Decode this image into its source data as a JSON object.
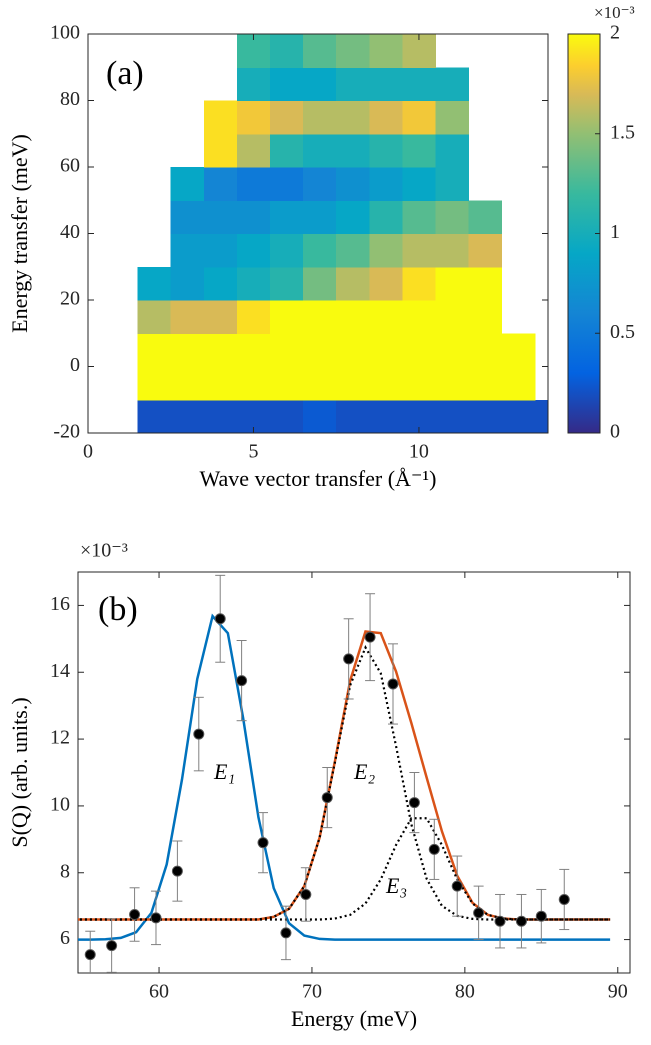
{
  "chart_data": [
    {
      "type": "heatmap",
      "panel_label": "(a)",
      "xlabel": "Wave vector transfer (Å⁻¹)",
      "ylabel": "Energy transfer (meV)",
      "x_edges": [
        1.5,
        2.5,
        3.5,
        4.5,
        5.5,
        6.5,
        7.5,
        8.5,
        9.5,
        10.5,
        11.5,
        12.5,
        13.5,
        13.9
      ],
      "y_edges": [
        -20,
        -10,
        0,
        10,
        20,
        30,
        40,
        50,
        60,
        70,
        80,
        90,
        100
      ],
      "values": [
        [
          0.2,
          0.2,
          0.2,
          0.2,
          0.2,
          0.25,
          0.2,
          0.2,
          0.2,
          0.2,
          0.2,
          0.2,
          0.2
        ],
        [
          2,
          2,
          2,
          2,
          2,
          2,
          2,
          2,
          2,
          2,
          2,
          2,
          null
        ],
        [
          2,
          2,
          2,
          2,
          2,
          2,
          2,
          2,
          2,
          2,
          2,
          2,
          null
        ],
        [
          1.6,
          1.7,
          1.7,
          1.9,
          2,
          2,
          2,
          2,
          2,
          2,
          2,
          null,
          null
        ],
        [
          0.9,
          0.8,
          0.9,
          1.0,
          1.1,
          1.4,
          1.6,
          1.7,
          1.9,
          2,
          2,
          null,
          null
        ],
        [
          null,
          0.8,
          0.8,
          0.9,
          1.0,
          1.2,
          1.3,
          1.5,
          1.6,
          1.6,
          1.7,
          null,
          null
        ],
        [
          null,
          0.7,
          0.7,
          0.7,
          0.8,
          0.8,
          0.9,
          1.1,
          1.3,
          1.4,
          1.3,
          null,
          null
        ],
        [
          null,
          0.9,
          0.6,
          0.5,
          0.5,
          0.6,
          0.7,
          0.8,
          0.9,
          1.0,
          null,
          null,
          null
        ],
        [
          null,
          null,
          1.9,
          1.6,
          1.1,
          1.0,
          1.0,
          1.1,
          1.2,
          1.0,
          null,
          null,
          null
        ],
        [
          null,
          null,
          1.9,
          1.8,
          1.7,
          1.6,
          1.6,
          1.7,
          1.8,
          1.5,
          null,
          null,
          null
        ],
        [
          null,
          null,
          null,
          1.0,
          0.9,
          0.9,
          1.0,
          1.0,
          1.0,
          1.0,
          null,
          null,
          null
        ],
        [
          null,
          null,
          null,
          1.2,
          1.1,
          1.3,
          1.4,
          1.5,
          1.6,
          null,
          null,
          null,
          null
        ]
      ],
      "xlim": [
        0,
        13.9
      ],
      "ylim": [
        -20,
        100
      ],
      "xticks": [
        0,
        5,
        10
      ],
      "yticks": [
        -20,
        0,
        20,
        40,
        60,
        80,
        100
      ],
      "colorbar": {
        "lim": [
          0,
          2
        ],
        "ticks": [
          0,
          0.5,
          1,
          1.5,
          2
        ],
        "exponent_label": "×10⁻³",
        "colormap": "parula"
      }
    },
    {
      "type": "scatter",
      "panel_label": "(b)",
      "xlabel": "Energy (meV)",
      "ylabel": "S(Q) (arb. units.)",
      "exponent_label": "×10⁻³",
      "xlim": [
        54.7,
        90.8
      ],
      "ylim": [
        5,
        17
      ],
      "xticks": [
        60,
        70,
        80,
        90
      ],
      "yticks": [
        6,
        8,
        10,
        12,
        14,
        16
      ],
      "x": [
        55.5,
        56.9,
        58.4,
        59.8,
        61.2,
        62.6,
        64.0,
        65.4,
        66.8,
        68.3,
        69.6,
        71.0,
        72.4,
        73.8,
        75.3,
        76.7,
        78.0,
        79.5,
        80.9,
        82.3,
        83.7,
        85.0,
        86.5
      ],
      "values": [
        5.55,
        5.82,
        6.75,
        6.65,
        8.05,
        12.15,
        15.6,
        13.75,
        8.9,
        6.2,
        7.35,
        10.25,
        14.4,
        15.05,
        13.65,
        10.1,
        8.7,
        7.6,
        6.8,
        6.55,
        6.55,
        6.7,
        7.2
      ],
      "errors": [
        0.7,
        0.8,
        0.8,
        0.8,
        0.9,
        1.1,
        1.3,
        1.2,
        0.9,
        0.8,
        0.8,
        0.9,
        1.2,
        1.3,
        1.2,
        0.9,
        0.9,
        0.9,
        0.8,
        0.8,
        0.8,
        0.8,
        0.9
      ],
      "color": "#000000",
      "errorbar_color": "#808080",
      "fit_x": [
        54.5,
        55.5,
        56.5,
        57.5,
        58.5,
        59.5,
        60.5,
        61.5,
        62.5,
        63.5,
        64.5,
        65.5,
        66.5,
        67.5,
        68.5,
        69.5,
        70.5,
        71.5,
        72.5,
        73.5,
        74.5,
        75.5,
        76.5,
        77.5,
        78.5,
        79.5,
        80.5,
        81.5,
        82.5,
        83.5,
        84.5,
        85.5,
        86.5,
        87.5,
        88.5,
        89.5
      ],
      "fits": [
        {
          "color": "#0072bd",
          "style": "solid",
          "values": [
            6.0,
            6.0,
            6.01,
            6.05,
            6.22,
            6.8,
            8.25,
            10.79,
            13.8,
            15.68,
            15.17,
            12.63,
            9.66,
            7.54,
            6.49,
            6.12,
            6.02,
            6.0,
            6.0,
            6.0,
            6.0,
            6.0,
            6.0,
            6.0,
            6.0,
            6.0,
            6.0,
            6.0,
            6.0,
            6.0,
            6.0,
            6.0,
            6.0,
            6.0,
            6.0,
            6.0
          ]
        },
        {
          "color": "#d95319",
          "style": "solid",
          "values": [
            6.6,
            6.6,
            6.6,
            6.6,
            6.6,
            6.6,
            6.6,
            6.6,
            6.6,
            6.6,
            6.6,
            6.6,
            6.6,
            6.68,
            6.92,
            7.6,
            9.05,
            11.33,
            13.75,
            15.22,
            15.17,
            14.02,
            12.48,
            10.85,
            9.24,
            7.91,
            7.1,
            6.74,
            6.63,
            6.6,
            6.6,
            6.6,
            6.6,
            6.6,
            6.6,
            6.6
          ]
        },
        {
          "color": "#000000",
          "style": "dotted",
          "values": [
            6.6,
            6.6,
            6.6,
            6.6,
            6.6,
            6.6,
            6.6,
            6.6,
            6.6,
            6.6,
            6.6,
            6.6,
            6.6,
            6.68,
            6.92,
            7.6,
            9.05,
            11.3,
            13.61,
            14.74,
            13.97,
            11.79,
            9.45,
            7.82,
            7.01,
            6.71,
            6.62,
            6.6,
            6.6,
            6.6,
            6.6,
            6.6,
            6.6,
            6.6,
            6.6,
            6.6
          ]
        },
        {
          "color": "#000000",
          "style": "dotted",
          "values": [
            6.6,
            6.6,
            6.6,
            6.6,
            6.6,
            6.6,
            6.6,
            6.6,
            6.6,
            6.6,
            6.6,
            6.6,
            6.6,
            6.6,
            6.6,
            6.6,
            6.6,
            6.63,
            6.74,
            7.08,
            7.8,
            8.83,
            9.63,
            9.63,
            8.83,
            7.8,
            7.08,
            6.74,
            6.63,
            6.6,
            6.6,
            6.6,
            6.6,
            6.6,
            6.6,
            6.6
          ]
        }
      ],
      "annotations": [
        "E₁",
        "E₂",
        "E₃"
      ]
    }
  ]
}
